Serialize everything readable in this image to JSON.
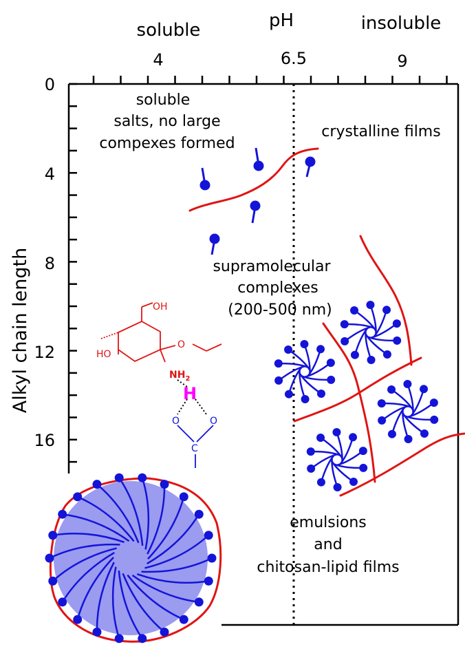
{
  "header": {
    "left_label": "soluble",
    "center_label": "pH",
    "right_label": "insoluble"
  },
  "x_axis": {
    "ticks": [
      "4",
      "6.5",
      "9"
    ]
  },
  "y_axis": {
    "label": "Alkyl chain length",
    "ticks": [
      "0",
      "4",
      "8",
      "12",
      "16"
    ]
  },
  "regions": {
    "soluble_line1": "soluble",
    "soluble_line2": "salts, no large",
    "soluble_line3": "compexes formed",
    "crystalline": "crystalline films",
    "supra_line1": "supramolecular",
    "supra_line2": "complexes",
    "supra_line3": "(200-500 nm)",
    "emul_line1": "emulsions",
    "emul_line2": "and",
    "emul_line3": "chitosan-lipid films"
  },
  "chemistry": {
    "oh_top": "OH",
    "ho_left": "HO",
    "nh": "NH",
    "nh_sub": "2",
    "h": "H",
    "o_left": "O",
    "o_right": "O",
    "c": "C"
  },
  "colors": {
    "red": "#e01414",
    "blue": "#1414d8",
    "magenta": "#ff00ff",
    "sphere_fill": "#9b9bf0"
  }
}
